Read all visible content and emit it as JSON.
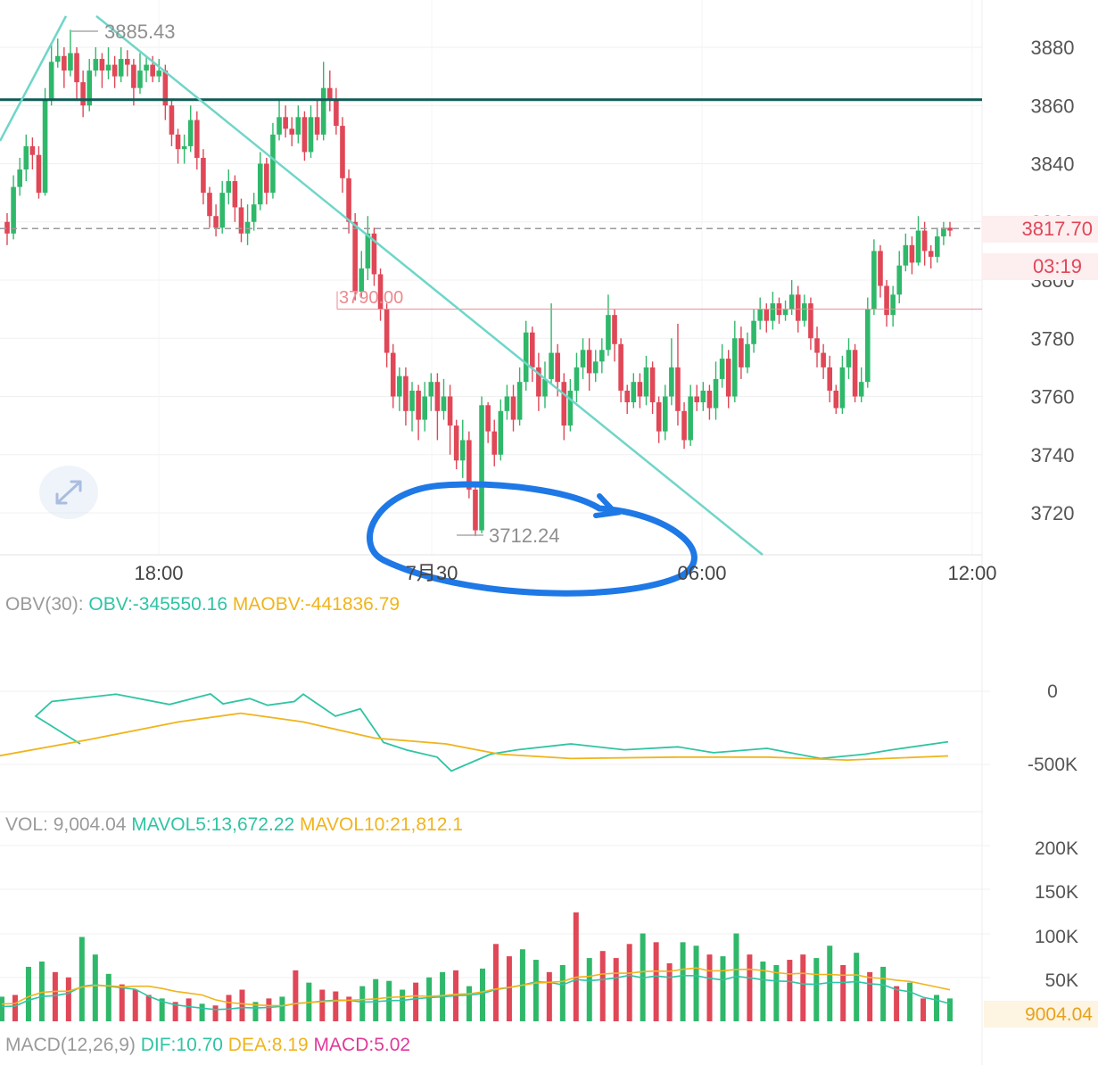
{
  "colors": {
    "up": "#2fb86a",
    "down": "#e04757",
    "trend": "#6fd6c8",
    "resistance": "#0f5c55",
    "obv": "#2fc4a4",
    "maobv": "#f0b41c",
    "annotation": "#1e78e6",
    "price_label": "#e04757"
  },
  "main": {
    "y_ticks": [
      "3880",
      "3860",
      "3840",
      "3820",
      "3800",
      "3780",
      "3760",
      "3740",
      "3720"
    ],
    "x_ticks": [
      "18:00",
      "7月30",
      "06:00",
      "12:00"
    ],
    "high_label": "3885.43",
    "low_label": "3712.24",
    "level_label": "3790.00",
    "current_price": "3817.70",
    "countdown": "03:19",
    "icons": {
      "expand": "expand-icon"
    }
  },
  "obv": {
    "title": "OBV(30):",
    "obv_label": "OBV:-345550.16",
    "maobv_label": "MAOBV:-441836.79",
    "y_ticks": [
      "0",
      "-500K"
    ]
  },
  "vol": {
    "title": "VOL: 9,004.04",
    "mavol5_label": "MAVOL5:13,672.22",
    "mavol10_label": "MAVOL10:21,812.1",
    "y_ticks": [
      "200K",
      "150K",
      "100K",
      "50K"
    ],
    "current": "9004.04"
  },
  "macd": {
    "title": "MACD(12,26,9)",
    "dif_label": "DIF:10.70",
    "dea_label": "DEA:8.19",
    "macd_label": "MACD:5.02"
  },
  "chart_data": {
    "type": "candlestick",
    "price_axis": {
      "ylim": [
        3705,
        3895
      ]
    },
    "candles": [
      [
        3820,
        3816,
        3823,
        3812
      ],
      [
        3816,
        3832,
        3836,
        3814
      ],
      [
        3832,
        3838,
        3842,
        3829
      ],
      [
        3838,
        3846,
        3850,
        3834
      ],
      [
        3846,
        3843,
        3849,
        3838
      ],
      [
        3843,
        3830,
        3846,
        3828
      ],
      [
        3830,
        3862,
        3866,
        3829
      ],
      [
        3862,
        3875,
        3881,
        3860
      ],
      [
        3875,
        3877,
        3883,
        3873
      ],
      [
        3877,
        3872,
        3880,
        3866
      ],
      [
        3872,
        3878,
        3886,
        3870
      ],
      [
        3878,
        3868,
        3880,
        3862
      ],
      [
        3868,
        3860,
        3872,
        3856
      ],
      [
        3860,
        3872,
        3876,
        3858
      ],
      [
        3872,
        3876,
        3880,
        3870
      ],
      [
        3876,
        3872,
        3878,
        3866
      ],
      [
        3872,
        3874,
        3880,
        3869
      ],
      [
        3874,
        3870,
        3877,
        3866
      ],
      [
        3870,
        3876,
        3880,
        3868
      ],
      [
        3876,
        3874,
        3879,
        3870
      ],
      [
        3874,
        3866,
        3876,
        3860
      ],
      [
        3866,
        3872,
        3878,
        3864
      ],
      [
        3872,
        3874,
        3877,
        3868
      ],
      [
        3874,
        3870,
        3877,
        3868
      ],
      [
        3870,
        3872,
        3876,
        3868
      ],
      [
        3872,
        3860,
        3874,
        3855
      ],
      [
        3860,
        3850,
        3862,
        3846
      ],
      [
        3850,
        3845,
        3852,
        3840
      ],
      [
        3845,
        3846,
        3850,
        3840
      ],
      [
        3846,
        3855,
        3860,
        3844
      ],
      [
        3855,
        3842,
        3858,
        3838
      ],
      [
        3842,
        3830,
        3845,
        3826
      ],
      [
        3830,
        3822,
        3832,
        3818
      ],
      [
        3822,
        3818,
        3826,
        3815
      ],
      [
        3818,
        3830,
        3834,
        3816
      ],
      [
        3830,
        3834,
        3838,
        3826
      ],
      [
        3834,
        3825,
        3836,
        3820
      ],
      [
        3825,
        3816,
        3828,
        3813
      ],
      [
        3816,
        3820,
        3826,
        3812
      ],
      [
        3820,
        3826,
        3830,
        3817
      ],
      [
        3826,
        3840,
        3844,
        3824
      ],
      [
        3840,
        3830,
        3842,
        3826
      ],
      [
        3830,
        3850,
        3854,
        3828
      ],
      [
        3850,
        3856,
        3862,
        3848
      ],
      [
        3856,
        3852,
        3860,
        3849
      ],
      [
        3852,
        3850,
        3856,
        3846
      ],
      [
        3850,
        3856,
        3860,
        3847
      ],
      [
        3856,
        3844,
        3858,
        3841
      ],
      [
        3844,
        3856,
        3860,
        3842
      ],
      [
        3856,
        3850,
        3862,
        3848
      ],
      [
        3850,
        3866,
        3875,
        3848
      ],
      [
        3866,
        3862,
        3872,
        3858
      ],
      [
        3862,
        3853,
        3866,
        3850
      ],
      [
        3853,
        3835,
        3856,
        3830
      ],
      [
        3835,
        3820,
        3838,
        3816
      ],
      [
        3820,
        3796,
        3823,
        3793
      ],
      [
        3796,
        3804,
        3810,
        3794
      ],
      [
        3804,
        3816,
        3822,
        3800
      ],
      [
        3816,
        3802,
        3818,
        3798
      ],
      [
        3802,
        3790,
        3804,
        3786
      ],
      [
        3790,
        3775,
        3792,
        3770
      ],
      [
        3775,
        3760,
        3778,
        3756
      ],
      [
        3760,
        3767,
        3770,
        3755
      ],
      [
        3767,
        3755,
        3770,
        3750
      ],
      [
        3755,
        3762,
        3765,
        3748
      ],
      [
        3762,
        3752,
        3764,
        3745
      ],
      [
        3752,
        3760,
        3765,
        3748
      ],
      [
        3760,
        3765,
        3768,
        3755
      ],
      [
        3765,
        3755,
        3768,
        3745
      ],
      [
        3755,
        3760,
        3766,
        3752
      ],
      [
        3760,
        3750,
        3764,
        3740
      ],
      [
        3750,
        3738,
        3752,
        3735
      ],
      [
        3738,
        3745,
        3752,
        3732
      ],
      [
        3745,
        3728,
        3748,
        3725
      ],
      [
        3728,
        3714,
        3730,
        3712
      ],
      [
        3714,
        3757,
        3760,
        3713
      ],
      [
        3757,
        3748,
        3758,
        3744
      ],
      [
        3748,
        3740,
        3752,
        3736
      ],
      [
        3740,
        3755,
        3759,
        3738
      ],
      [
        3755,
        3760,
        3764,
        3752
      ],
      [
        3760,
        3752,
        3764,
        3748
      ],
      [
        3752,
        3765,
        3770,
        3750
      ],
      [
        3765,
        3782,
        3786,
        3762
      ],
      [
        3782,
        3770,
        3784,
        3765
      ],
      [
        3770,
        3760,
        3775,
        3755
      ],
      [
        3760,
        3766,
        3772,
        3756
      ],
      [
        3766,
        3775,
        3792,
        3764
      ],
      [
        3775,
        3765,
        3778,
        3760
      ],
      [
        3765,
        3750,
        3768,
        3745
      ],
      [
        3750,
        3762,
        3766,
        3748
      ],
      [
        3762,
        3770,
        3775,
        3758
      ],
      [
        3770,
        3776,
        3780,
        3766
      ],
      [
        3776,
        3768,
        3780,
        3762
      ],
      [
        3768,
        3772,
        3776,
        3765
      ],
      [
        3772,
        3776,
        3780,
        3768
      ],
      [
        3776,
        3788,
        3795,
        3774
      ],
      [
        3788,
        3778,
        3790,
        3772
      ],
      [
        3778,
        3762,
        3780,
        3758
      ],
      [
        3762,
        3758,
        3764,
        3754
      ],
      [
        3758,
        3765,
        3768,
        3756
      ],
      [
        3765,
        3760,
        3768,
        3756
      ],
      [
        3760,
        3770,
        3774,
        3757
      ],
      [
        3770,
        3758,
        3772,
        3754
      ],
      [
        3758,
        3748,
        3760,
        3744
      ],
      [
        3748,
        3760,
        3764,
        3745
      ],
      [
        3760,
        3770,
        3780,
        3757
      ],
      [
        3770,
        3755,
        3785,
        3750
      ],
      [
        3755,
        3745,
        3758,
        3742
      ],
      [
        3745,
        3760,
        3764,
        3743
      ],
      [
        3760,
        3758,
        3764,
        3755
      ],
      [
        3758,
        3762,
        3765,
        3755
      ],
      [
        3762,
        3756,
        3764,
        3752
      ],
      [
        3756,
        3766,
        3772,
        3752
      ],
      [
        3766,
        3773,
        3778,
        3763
      ],
      [
        3773,
        3760,
        3776,
        3756
      ],
      [
        3760,
        3780,
        3786,
        3758
      ],
      [
        3780,
        3770,
        3784,
        3766
      ],
      [
        3770,
        3778,
        3782,
        3768
      ],
      [
        3778,
        3786,
        3790,
        3775
      ],
      [
        3786,
        3790,
        3794,
        3783
      ],
      [
        3790,
        3786,
        3792,
        3782
      ],
      [
        3786,
        3792,
        3796,
        3783
      ],
      [
        3792,
        3788,
        3794,
        3785
      ],
      [
        3788,
        3790,
        3793,
        3786
      ],
      [
        3790,
        3795,
        3800,
        3788
      ],
      [
        3795,
        3786,
        3798,
        3782
      ],
      [
        3786,
        3792,
        3795,
        3784
      ],
      [
        3792,
        3780,
        3794,
        3776
      ],
      [
        3780,
        3775,
        3784,
        3770
      ],
      [
        3775,
        3770,
        3778,
        3766
      ],
      [
        3770,
        3762,
        3774,
        3758
      ],
      [
        3762,
        3756,
        3764,
        3754
      ],
      [
        3756,
        3770,
        3774,
        3754
      ],
      [
        3770,
        3776,
        3780,
        3766
      ],
      [
        3776,
        3760,
        3778,
        3758
      ],
      [
        3760,
        3765,
        3770,
        3758
      ],
      [
        3765,
        3790,
        3794,
        3763
      ],
      [
        3790,
        3810,
        3814,
        3788
      ],
      [
        3810,
        3798,
        3812,
        3794
      ],
      [
        3798,
        3788,
        3800,
        3784
      ],
      [
        3788,
        3795,
        3798,
        3784
      ],
      [
        3795,
        3805,
        3810,
        3792
      ],
      [
        3805,
        3812,
        3816,
        3803
      ],
      [
        3812,
        3806,
        3815,
        3802
      ],
      [
        3806,
        3817,
        3822,
        3805
      ],
      [
        3817,
        3810,
        3820,
        3805
      ],
      [
        3810,
        3808,
        3812,
        3804
      ],
      [
        3808,
        3815,
        3818,
        3806
      ],
      [
        3815,
        3818,
        3820,
        3812
      ],
      [
        3818,
        3817,
        3820,
        3815
      ]
    ],
    "horizontal_lines": [
      {
        "value": 3862,
        "label": ""
      },
      {
        "value": 3790,
        "label": "3790.00"
      },
      {
        "value": 3817.7,
        "label": "3817.70"
      }
    ],
    "obv": [
      [
        90,
        -360
      ],
      [
        40,
        -170
      ],
      [
        58,
        -70
      ],
      [
        130,
        -20
      ],
      [
        190,
        -90
      ],
      [
        236,
        -18
      ],
      [
        250,
        -86
      ],
      [
        280,
        -50
      ],
      [
        300,
        -96
      ],
      [
        330,
        -70
      ],
      [
        340,
        -20
      ],
      [
        376,
        -170
      ],
      [
        404,
        -120
      ],
      [
        430,
        -350
      ],
      [
        456,
        -402
      ],
      [
        490,
        -450
      ],
      [
        506,
        -545
      ],
      [
        550,
        -430
      ],
      [
        580,
        -400
      ],
      [
        640,
        -360
      ],
      [
        700,
        -400
      ],
      [
        760,
        -380
      ],
      [
        800,
        -420
      ],
      [
        860,
        -390
      ],
      [
        920,
        -460
      ],
      [
        970,
        -430
      ],
      [
        1000,
        -400
      ],
      [
        1063,
        -345
      ]
    ],
    "maobv": [
      [
        0,
        -440
      ],
      [
        100,
        -330
      ],
      [
        200,
        -210
      ],
      [
        270,
        -150
      ],
      [
        340,
        -210
      ],
      [
        420,
        -320
      ],
      [
        500,
        -360
      ],
      [
        560,
        -430
      ],
      [
        640,
        -460
      ],
      [
        760,
        -450
      ],
      [
        860,
        -450
      ],
      [
        950,
        -470
      ],
      [
        1063,
        -442
      ]
    ],
    "volumes": [
      [
        28,
        "up"
      ],
      [
        30,
        "down"
      ],
      [
        62,
        "up"
      ],
      [
        68,
        "up"
      ],
      [
        56,
        "down"
      ],
      [
        50,
        "down"
      ],
      [
        96,
        "up"
      ],
      [
        76,
        "up"
      ],
      [
        54,
        "up"
      ],
      [
        42,
        "down"
      ],
      [
        36,
        "down"
      ],
      [
        30,
        "down"
      ],
      [
        26,
        "up"
      ],
      [
        22,
        "down"
      ],
      [
        26,
        "down"
      ],
      [
        20,
        "up"
      ],
      [
        18,
        "down"
      ],
      [
        30,
        "down"
      ],
      [
        36,
        "down"
      ],
      [
        22,
        "up"
      ],
      [
        26,
        "down"
      ],
      [
        28,
        "up"
      ],
      [
        58,
        "down"
      ],
      [
        44,
        "up"
      ],
      [
        36,
        "down"
      ],
      [
        34,
        "down"
      ],
      [
        28,
        "down"
      ],
      [
        40,
        "up"
      ],
      [
        48,
        "up"
      ],
      [
        46,
        "up"
      ],
      [
        36,
        "up"
      ],
      [
        44,
        "down"
      ],
      [
        50,
        "up"
      ],
      [
        56,
        "up"
      ],
      [
        58,
        "down"
      ],
      [
        40,
        "up"
      ],
      [
        60,
        "up"
      ],
      [
        88,
        "down"
      ],
      [
        74,
        "down"
      ],
      [
        82,
        "up"
      ],
      [
        70,
        "up"
      ],
      [
        56,
        "down"
      ],
      [
        64,
        "up"
      ],
      [
        124,
        "down"
      ],
      [
        72,
        "up"
      ],
      [
        80,
        "down"
      ],
      [
        72,
        "down"
      ],
      [
        88,
        "down"
      ],
      [
        100,
        "up"
      ],
      [
        90,
        "down"
      ],
      [
        66,
        "down"
      ],
      [
        90,
        "up"
      ],
      [
        86,
        "up"
      ],
      [
        76,
        "down"
      ],
      [
        74,
        "up"
      ],
      [
        100,
        "up"
      ],
      [
        76,
        "down"
      ],
      [
        68,
        "up"
      ],
      [
        64,
        "up"
      ],
      [
        70,
        "down"
      ],
      [
        76,
        "down"
      ],
      [
        72,
        "up"
      ],
      [
        86,
        "up"
      ],
      [
        64,
        "down"
      ],
      [
        78,
        "up"
      ],
      [
        56,
        "down"
      ],
      [
        62,
        "up"
      ],
      [
        40,
        "down"
      ],
      [
        44,
        "up"
      ],
      [
        26,
        "down"
      ],
      [
        30,
        "up"
      ],
      [
        26,
        "up"
      ]
    ]
  }
}
